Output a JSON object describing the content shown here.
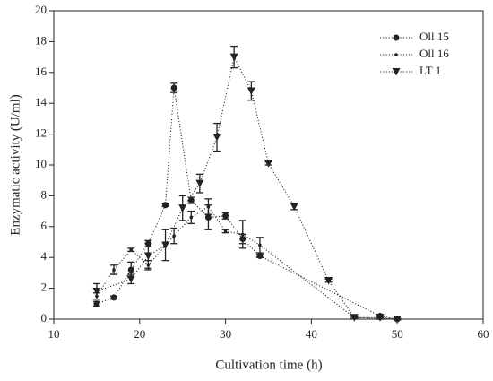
{
  "chart_data": {
    "type": "line",
    "x_label": "Cultivation time (h)",
    "y_label": "Enzymatic activity (U/ml)",
    "xlim": [
      10,
      60
    ],
    "xticks": [
      10,
      20,
      30,
      40,
      50,
      60
    ],
    "ylim": [
      0,
      20
    ],
    "yticks": [
      0,
      2,
      4,
      6,
      8,
      10,
      12,
      14,
      16,
      18,
      20
    ],
    "legend": "upper right",
    "series": [
      {
        "name": "Oll 15",
        "color": "#222222",
        "marker": "circle",
        "x": [
          15,
          17,
          19,
          21,
          23,
          24,
          26,
          28,
          30,
          32,
          34,
          48,
          50
        ],
        "values": [
          1.0,
          1.4,
          3.2,
          4.9,
          7.4,
          15.0,
          7.7,
          6.6,
          6.7,
          5.2,
          4.1,
          0.2,
          0.0
        ],
        "errors": [
          0.15,
          0.1,
          0.5,
          0.2,
          0.1,
          0.3,
          0.2,
          0.8,
          0.2,
          0.3,
          0.1,
          0.1,
          0.05
        ]
      },
      {
        "name": "Oll 16",
        "color": "#222222",
        "marker": "dot",
        "x": [
          15,
          17,
          19,
          21,
          24,
          26,
          28,
          30,
          32,
          34,
          45,
          48,
          50
        ],
        "values": [
          1.5,
          3.2,
          4.5,
          3.5,
          5.4,
          6.6,
          7.3,
          5.7,
          5.5,
          4.8,
          0.1,
          0.05,
          0.0
        ],
        "errors": [
          0.2,
          0.3,
          0.1,
          0.3,
          0.5,
          0.4,
          0.5,
          0.1,
          0.9,
          0.5,
          0.05,
          0.05,
          0.05
        ]
      },
      {
        "name": "LT 1",
        "color": "#222222",
        "marker": "triangle-down",
        "x": [
          15,
          19,
          21,
          23,
          25,
          27,
          29,
          31,
          33,
          35,
          38,
          42,
          45,
          48,
          50
        ],
        "values": [
          1.8,
          2.6,
          4.1,
          4.8,
          7.2,
          8.8,
          11.8,
          17.0,
          14.8,
          10.1,
          7.3,
          2.5,
          0.1,
          0.1,
          0.0
        ],
        "errors": [
          0.5,
          0.3,
          0.8,
          1.0,
          0.8,
          0.6,
          0.9,
          0.7,
          0.6,
          0.1,
          0.2,
          0.1,
          0.05,
          0.1,
          0.05
        ]
      }
    ]
  }
}
